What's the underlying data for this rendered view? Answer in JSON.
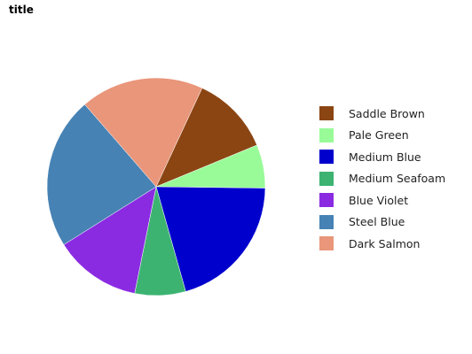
{
  "chart_data": {
    "type": "pie",
    "title": "title",
    "legend_position": "right",
    "series": [
      {
        "name": "Saddle Brown",
        "value": 11,
        "color": "#8B4513"
      },
      {
        "name": "Pale Green",
        "value": 6,
        "color": "#98FB98"
      },
      {
        "name": "Medium Blue",
        "value": 19,
        "color": "#0000CD"
      },
      {
        "name": "Medium Seafoam",
        "value": 7,
        "color": "#3CB371"
      },
      {
        "name": "Blue Violet",
        "value": 12,
        "color": "#8A2BE2"
      },
      {
        "name": "Steel Blue",
        "value": 21,
        "color": "#4682B4"
      },
      {
        "name": "Dark Salmon",
        "value": 17,
        "color": "#E9967A"
      }
    ]
  }
}
